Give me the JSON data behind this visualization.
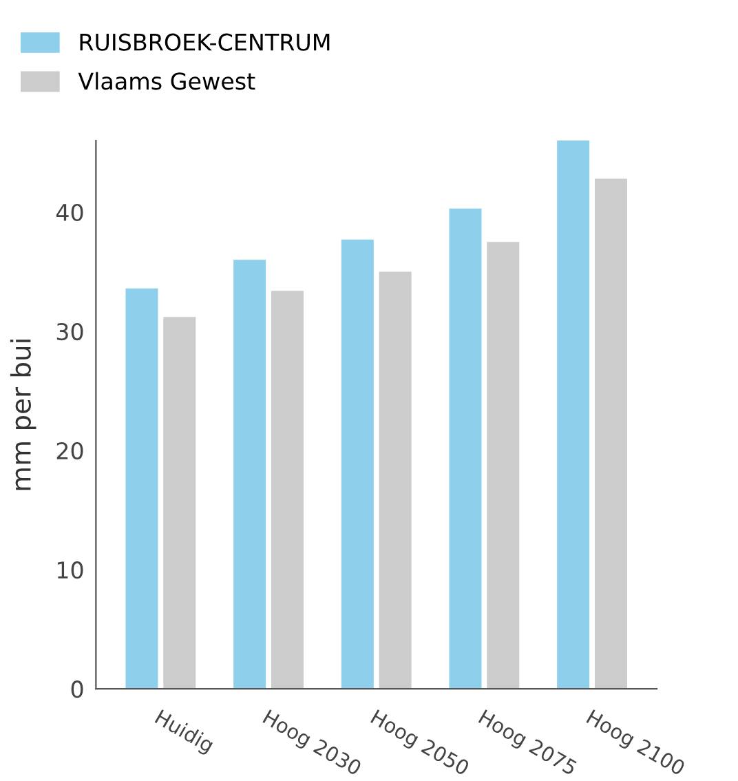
{
  "chart_data": {
    "type": "bar",
    "ylabel": "mm per bui",
    "categories": [
      "Huidig",
      "Hoog 2030",
      "Hoog 2050",
      "Hoog 2075",
      "Hoog 2100"
    ],
    "series": [
      {
        "name": "RUISBROEK-CENTRUM",
        "color": "#8ecfeb",
        "values": [
          33.6,
          36.0,
          37.7,
          40.3,
          46.0
        ]
      },
      {
        "name": "Vlaams Gewest",
        "color": "#cccccc",
        "values": [
          31.2,
          33.4,
          35.0,
          37.5,
          42.8
        ]
      }
    ],
    "ylim": [
      0,
      46
    ],
    "yticks": [
      0,
      10,
      20,
      30,
      40
    ],
    "grid": false,
    "legend": "top left"
  }
}
